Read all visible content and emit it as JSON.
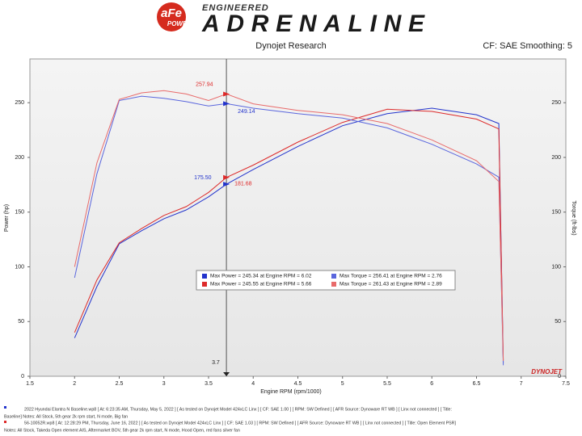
{
  "header": {
    "logo_main": "aFe",
    "logo_sub": "POWER",
    "tagline_top": "ENGINEERED",
    "tagline_main": "ADRENALINE"
  },
  "chart_data": {
    "type": "line",
    "title": "Dynojet Research",
    "subtitle": "CF: SAE Smoothing: 5",
    "x_label": "Engine RPM (rpm/1000)",
    "y_label": "Power (hp)",
    "y2_label": "Torque (ft-lbs)",
    "watermark": "DYNOJET",
    "x": [
      2.0,
      2.25,
      2.5,
      2.75,
      3.0,
      3.25,
      3.5,
      3.7,
      4.0,
      4.5,
      5.0,
      5.5,
      6.0,
      6.5,
      6.75,
      6.8
    ],
    "series": [
      {
        "name": "Max Power = 245.34 at Engine RPM = 6.02",
        "color": "#2233cc",
        "axis": "y",
        "values": [
          35,
          82,
          121,
          133,
          144,
          152,
          164,
          175.5,
          189,
          210,
          229,
          240,
          245,
          239,
          231,
          12
        ]
      },
      {
        "name": "Max Power = 245.55 at Engine RPM = 5.66",
        "color": "#dd2a2a",
        "axis": "y",
        "values": [
          40,
          88,
          122,
          135,
          147,
          155,
          168,
          181.68,
          193,
          214,
          232,
          244,
          242,
          235,
          226,
          15
        ]
      },
      {
        "name": "Max Torque = 256.41 at Engine RPM = 2.76",
        "color": "#5a66dd",
        "axis": "y2",
        "values": [
          90,
          185,
          252,
          256,
          254,
          251,
          247,
          249.14,
          245,
          240,
          236,
          227,
          212,
          194,
          182,
          10
        ]
      },
      {
        "name": "Max Torque = 261.43 at Engine RPM = 2.89",
        "color": "#e86a6a",
        "axis": "y2",
        "values": [
          100,
          195,
          253,
          259,
          261,
          258,
          252,
          257.94,
          249,
          243,
          239,
          231,
          216,
          197,
          178,
          14
        ]
      }
    ],
    "xlim": [
      1.5,
      7.5
    ],
    "xticks": [
      1.5,
      2.0,
      2.5,
      3.0,
      3.5,
      4.0,
      4.5,
      5.0,
      5.5,
      6.0,
      6.5,
      7.0,
      7.5
    ],
    "ylim": [
      0,
      290
    ],
    "yticks": [
      0,
      50,
      100,
      150,
      200,
      250
    ],
    "y2lim": [
      0,
      290
    ],
    "y2ticks": [
      0,
      50,
      100,
      150,
      200,
      250
    ],
    "grid": false,
    "cursor": {
      "x": 3.7,
      "label": "3.7"
    },
    "annotations": [
      {
        "x": 3.7,
        "y": 257.94,
        "label": "257.94",
        "color": "#dd2a2a",
        "axis": "y2"
      },
      {
        "x": 3.7,
        "y": 249.14,
        "label": "249.14",
        "color": "#2233cc",
        "axis": "y2"
      },
      {
        "x": 3.7,
        "y": 175.5,
        "label": "175.50",
        "color": "#2233cc",
        "axis": "y"
      },
      {
        "x": 3.7,
        "y": 181.68,
        "label": "181.68",
        "color": "#dd2a2a",
        "axis": "y"
      }
    ]
  },
  "footer": [
    "2022 Hyundai Elantra N Baseline.wp8 [ At: 6:23:35 AM, Thursday, May 5, 2022 ] [ As tested on Dynojet Model 424xLC Linx ] [ CF: SAE 1.00 ] [ RPM: SW Defined ] [ AFR Source: Dynoware RT WB ] [ Linx not connected ] [ Title:",
    "Baseline] Notes: All Stock, 5th gear 2k rpm start, N mode, Big fan",
    "56-10052R.wp8 [ At: 12:28:29 PM, Thursday, June 16, 2022 ] [ As tested on Dynojet Model 424xLC Linx ] [ CF: SAE 1.03 ] [ RPM: SW Defined ] [ AFR Source: Dynoware RT WB ] [ Linx not connected ] [ Title: Open Element PSR]",
    "Notes: All Stock, Takeda Open element AIS, Aftermarket BOV, 5th gear 2k rpm start, N mode, Hood Open, red fans silver fan"
  ]
}
